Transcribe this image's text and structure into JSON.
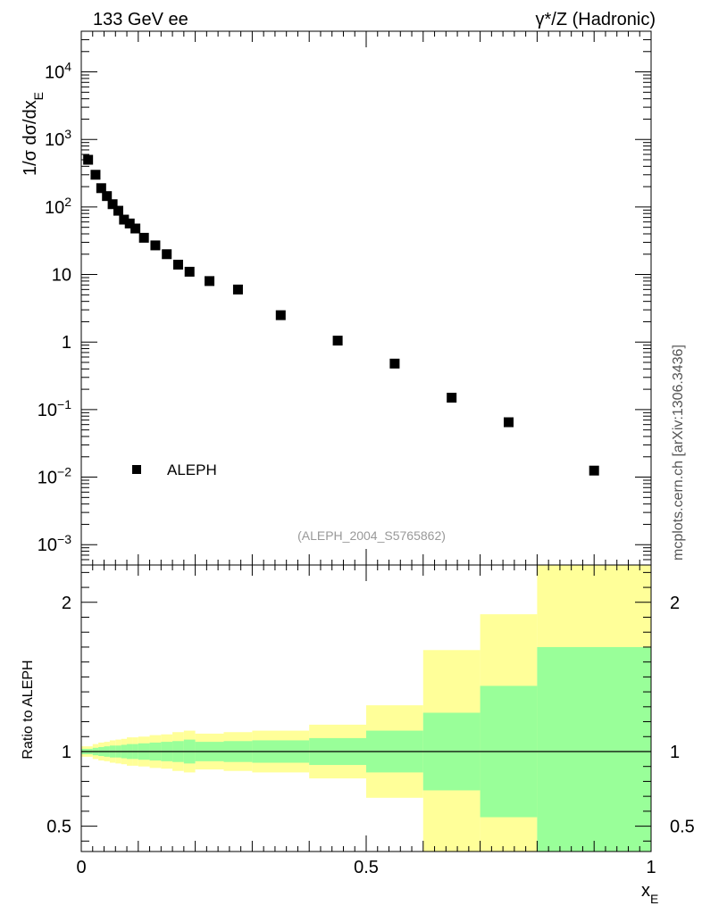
{
  "header": {
    "left_title": "133 GeV ee",
    "right_title": "γ*/Z (Hadronic)"
  },
  "side_note": "mcplots.cern.ch [arXiv:1306.3436]",
  "analysis_tag": "(ALEPH_2004_S5765862)",
  "chart_data": [
    {
      "type": "scatter",
      "panel": "main",
      "ylabel": "1/σ dσ/dx",
      "ylabel_sub": "E",
      "yscale": "log",
      "ylim": [
        0.0005,
        40000
      ],
      "xlim": [
        0,
        1
      ],
      "legend": {
        "label": "ALEPH",
        "placement": "bottom-left"
      },
      "y_ticks": [
        {
          "value": 0.001,
          "base": "10",
          "exp": "−3"
        },
        {
          "value": 0.01,
          "base": "10",
          "exp": "−2"
        },
        {
          "value": 0.1,
          "base": "10",
          "exp": "−1"
        },
        {
          "value": 1,
          "base": "1",
          "exp": ""
        },
        {
          "value": 10,
          "base": "10",
          "exp": ""
        },
        {
          "value": 100,
          "base": "10",
          "exp": "2"
        },
        {
          "value": 1000,
          "base": "10",
          "exp": "3"
        },
        {
          "value": 10000,
          "base": "10",
          "exp": "4"
        }
      ],
      "series": [
        {
          "name": "ALEPH",
          "x": [
            0.012,
            0.025,
            0.035,
            0.045,
            0.055,
            0.065,
            0.075,
            0.085,
            0.095,
            0.11,
            0.13,
            0.15,
            0.17,
            0.19,
            0.225,
            0.275,
            0.35,
            0.45,
            0.55,
            0.65,
            0.75,
            0.9
          ],
          "y": [
            500,
            300,
            190,
            145,
            110,
            88,
            65,
            57,
            48,
            35,
            27,
            20,
            14,
            11,
            8.0,
            6.0,
            2.5,
            1.05,
            0.48,
            0.15,
            0.065,
            0.0125
          ]
        }
      ]
    },
    {
      "type": "area",
      "panel": "ratio",
      "ylabel": "Ratio to ALEPH",
      "xlabel": "x",
      "xlabel_sub": "E",
      "xlim": [
        0,
        1
      ],
      "ylim": [
        0.33,
        2.25
      ],
      "y_ticks": [
        0.5,
        1,
        2
      ],
      "y_tick_labels": [
        "0.5",
        "1",
        "2"
      ],
      "x_ticks": [
        0,
        0.5,
        1
      ],
      "x_tick_labels": [
        "0",
        "0.5",
        "1"
      ],
      "reference_line": 1,
      "colors": {
        "inner_band": "#99ff99",
        "outer_band": "#ffff99"
      },
      "bins": [
        {
          "x0": 0.0,
          "x1": 0.02,
          "inner": [
            0.982,
            1.018
          ],
          "outer": [
            0.965,
            1.035
          ]
        },
        {
          "x0": 0.02,
          "x1": 0.03,
          "inner": [
            0.975,
            1.025
          ],
          "outer": [
            0.95,
            1.05
          ]
        },
        {
          "x0": 0.03,
          "x1": 0.04,
          "inner": [
            0.97,
            1.03
          ],
          "outer": [
            0.94,
            1.06
          ]
        },
        {
          "x0": 0.04,
          "x1": 0.05,
          "inner": [
            0.965,
            1.035
          ],
          "outer": [
            0.935,
            1.065
          ]
        },
        {
          "x0": 0.05,
          "x1": 0.06,
          "inner": [
            0.96,
            1.04
          ],
          "outer": [
            0.925,
            1.075
          ]
        },
        {
          "x0": 0.06,
          "x1": 0.07,
          "inner": [
            0.96,
            1.04
          ],
          "outer": [
            0.92,
            1.08
          ]
        },
        {
          "x0": 0.07,
          "x1": 0.08,
          "inner": [
            0.955,
            1.045
          ],
          "outer": [
            0.915,
            1.085
          ]
        },
        {
          "x0": 0.08,
          "x1": 0.09,
          "inner": [
            0.95,
            1.05
          ],
          "outer": [
            0.905,
            1.095
          ]
        },
        {
          "x0": 0.09,
          "x1": 0.1,
          "inner": [
            0.95,
            1.05
          ],
          "outer": [
            0.905,
            1.095
          ]
        },
        {
          "x0": 0.1,
          "x1": 0.12,
          "inner": [
            0.945,
            1.055
          ],
          "outer": [
            0.9,
            1.1
          ]
        },
        {
          "x0": 0.12,
          "x1": 0.14,
          "inner": [
            0.94,
            1.06
          ],
          "outer": [
            0.89,
            1.11
          ]
        },
        {
          "x0": 0.14,
          "x1": 0.16,
          "inner": [
            0.935,
            1.065
          ],
          "outer": [
            0.885,
            1.115
          ]
        },
        {
          "x0": 0.16,
          "x1": 0.18,
          "inner": [
            0.93,
            1.07
          ],
          "outer": [
            0.87,
            1.13
          ]
        },
        {
          "x0": 0.18,
          "x1": 0.2,
          "inner": [
            0.92,
            1.08
          ],
          "outer": [
            0.86,
            1.14
          ]
        },
        {
          "x0": 0.2,
          "x1": 0.25,
          "inner": [
            0.935,
            1.065
          ],
          "outer": [
            0.88,
            1.12
          ]
        },
        {
          "x0": 0.25,
          "x1": 0.3,
          "inner": [
            0.93,
            1.07
          ],
          "outer": [
            0.87,
            1.13
          ]
        },
        {
          "x0": 0.3,
          "x1": 0.4,
          "inner": [
            0.925,
            1.075
          ],
          "outer": [
            0.86,
            1.14
          ]
        },
        {
          "x0": 0.4,
          "x1": 0.5,
          "inner": [
            0.91,
            1.09
          ],
          "outer": [
            0.82,
            1.18
          ]
        },
        {
          "x0": 0.5,
          "x1": 0.6,
          "inner": [
            0.86,
            1.14
          ],
          "outer": [
            0.69,
            1.31
          ]
        },
        {
          "x0": 0.6,
          "x1": 0.7,
          "inner": [
            0.74,
            1.26
          ],
          "outer": [
            0.3,
            1.68
          ]
        },
        {
          "x0": 0.7,
          "x1": 0.8,
          "inner": [
            0.56,
            1.44
          ],
          "outer": [
            0.3,
            1.92
          ]
        },
        {
          "x0": 0.8,
          "x1": 1.0,
          "inner": [
            0.3,
            1.7
          ],
          "outer": [
            0.3,
            2.3
          ]
        }
      ]
    }
  ]
}
